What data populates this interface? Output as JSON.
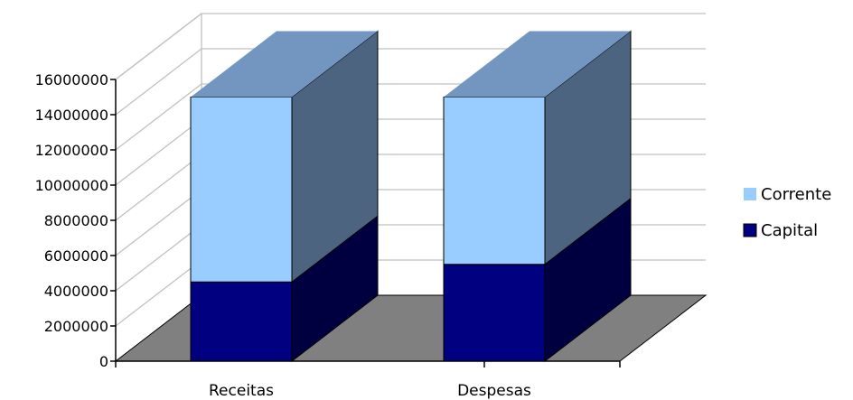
{
  "chart_data": {
    "type": "bar",
    "stacked": true,
    "three_d": true,
    "categories": [
      "Receitas",
      "Despesas"
    ],
    "series": [
      {
        "name": "Capital",
        "values": [
          4500000,
          5500000
        ],
        "color": "#000080"
      },
      {
        "name": "Corrente",
        "values": [
          10500000,
          9500000
        ],
        "color": "#99CCFF"
      }
    ],
    "y_ticks": [
      "0",
      "2000000",
      "4000000",
      "6000000",
      "8000000",
      "10000000",
      "12000000",
      "14000000",
      "16000000"
    ],
    "ylim": [
      0,
      16000000
    ],
    "grid": true,
    "legend_position": "right",
    "colors": {
      "floor": "#808080",
      "capital_side": "#000040",
      "corrente_side": "#4D6480",
      "corrente_top": "#7396C0",
      "gridline": "#c0c0c0"
    }
  }
}
